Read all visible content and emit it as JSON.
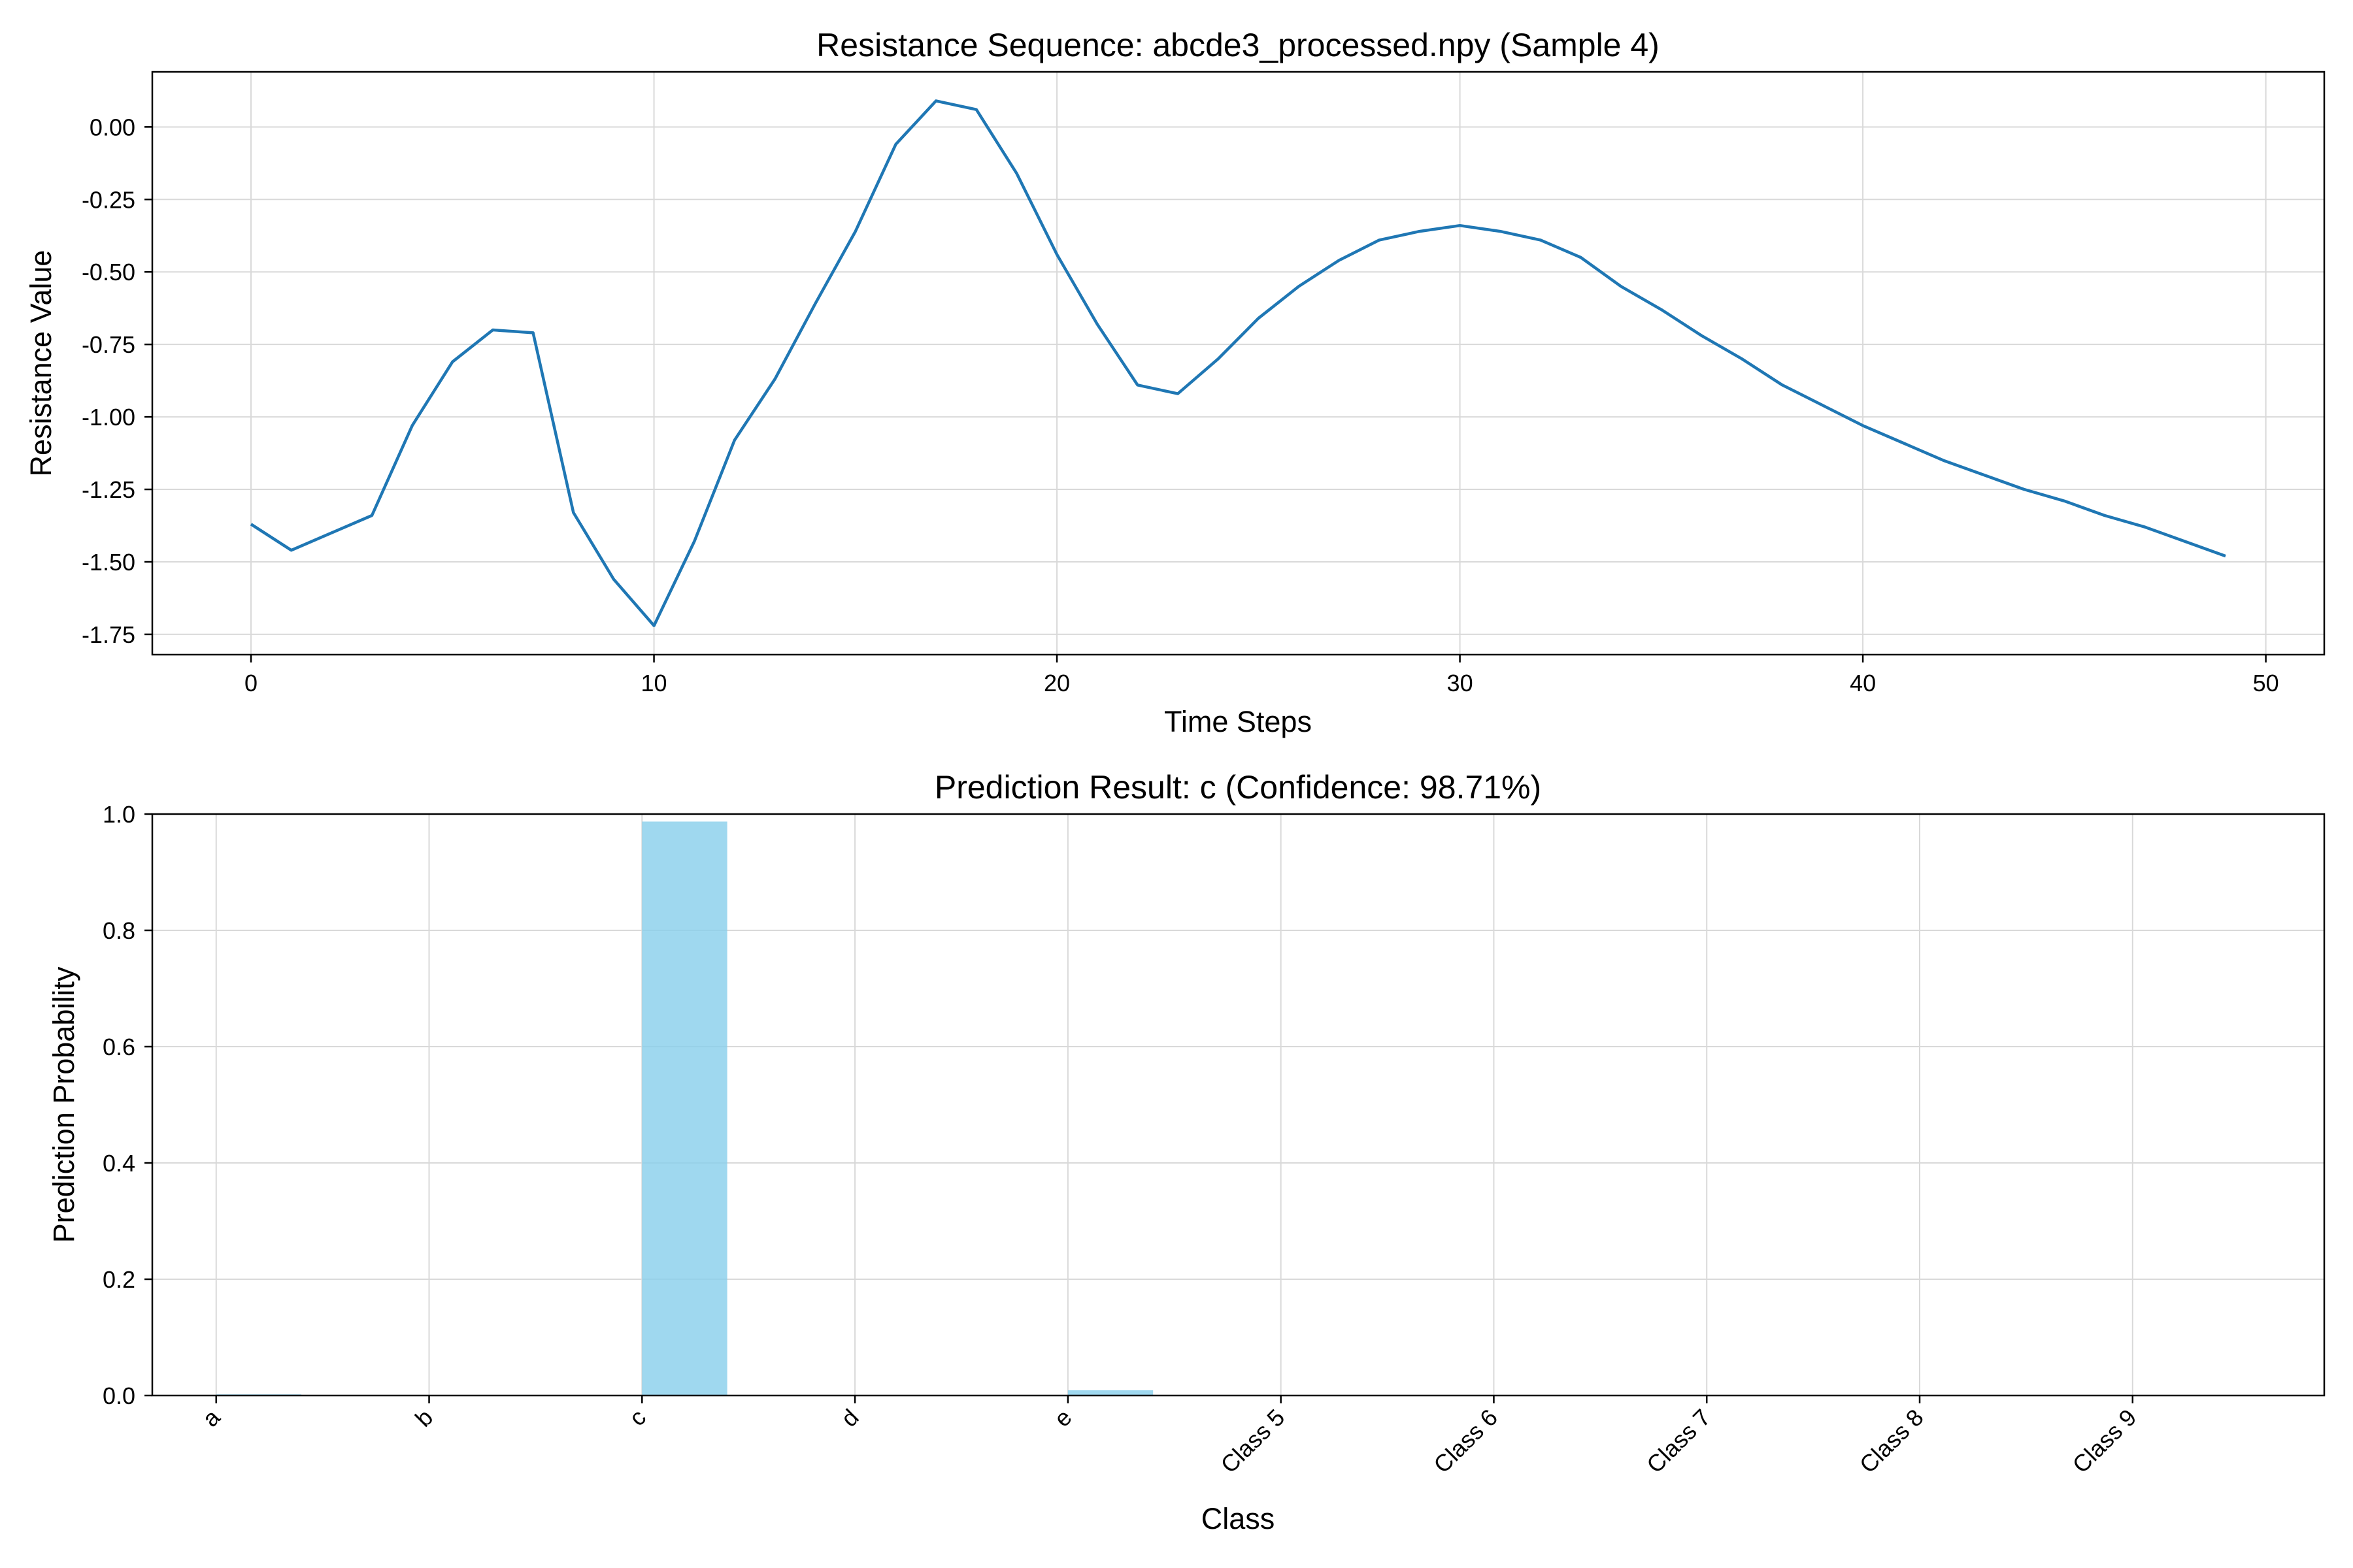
{
  "chart_data": [
    {
      "type": "line",
      "title": "Resistance Sequence: abcde3_processed.npy (Sample 4)",
      "xlabel": "Time Steps",
      "ylabel": "Resistance Value",
      "xlim": [
        -2.45,
        51.45
      ],
      "ylim": [
        -1.82,
        0.19
      ],
      "xticks": [
        0,
        10,
        20,
        30,
        40,
        50
      ],
      "xtick_labels": [
        "0",
        "10",
        "20",
        "30",
        "40",
        "50"
      ],
      "yticks": [
        0.0,
        -0.25,
        -0.5,
        -0.75,
        -1.0,
        -1.25,
        -1.5,
        -1.75
      ],
      "ytick_labels": [
        "0.00",
        "-0.25",
        "-0.50",
        "-0.75",
        "-1.00",
        "-1.25",
        "-1.50",
        "-1.75"
      ],
      "grid": true,
      "color": "#1f77b4",
      "series": [
        {
          "x": [
            0,
            1,
            2,
            3,
            4,
            5,
            6,
            7,
            8,
            9,
            10,
            11,
            12,
            13,
            14,
            15,
            16,
            17,
            18,
            19,
            20,
            21,
            22,
            23,
            24,
            25,
            26,
            27,
            28,
            29,
            30,
            31,
            32,
            33,
            34,
            35,
            36,
            37,
            38,
            39,
            40,
            41,
            42,
            43,
            44,
            45,
            46,
            47,
            48,
            49
          ],
          "y": [
            -1.37,
            -1.46,
            -1.4,
            -1.34,
            -1.03,
            -0.81,
            -0.7,
            -0.71,
            -1.33,
            -1.56,
            -1.72,
            -1.43,
            -1.08,
            -0.87,
            -0.61,
            -0.36,
            -0.06,
            0.09,
            0.06,
            -0.16,
            -0.44,
            -0.68,
            -0.89,
            -0.92,
            -0.8,
            -0.66,
            -0.55,
            -0.46,
            -0.39,
            -0.36,
            -0.34,
            -0.36,
            -0.39,
            -0.45,
            -0.55,
            -0.63,
            -0.72,
            -0.8,
            -0.89,
            -0.96,
            -1.03,
            -1.09,
            -1.15,
            -1.2,
            -1.25,
            -1.29,
            -1.34,
            -1.38,
            -1.43,
            -1.48
          ]
        }
      ]
    },
    {
      "type": "bar",
      "title": "Prediction Result: c (Confidence: 98.71%)",
      "xlabel": "Class",
      "ylabel": "Prediction Probability",
      "ylim": [
        0,
        1.0
      ],
      "yticks": [
        0.0,
        0.2,
        0.4,
        0.6,
        0.8,
        1.0
      ],
      "ytick_labels": [
        "0.0",
        "0.2",
        "0.4",
        "0.6",
        "0.8",
        "1.0"
      ],
      "categories": [
        "a",
        "b",
        "c",
        "d",
        "e",
        "Class 5",
        "Class 6",
        "Class 7",
        "Class 8",
        "Class 9"
      ],
      "values": [
        0.002,
        0.0,
        0.9871,
        0.0005,
        0.009,
        0.0,
        0.0,
        0.0,
        0.0,
        0.0
      ],
      "xtick_rotation": 45,
      "grid": true,
      "color": "#87ceeb"
    }
  ]
}
